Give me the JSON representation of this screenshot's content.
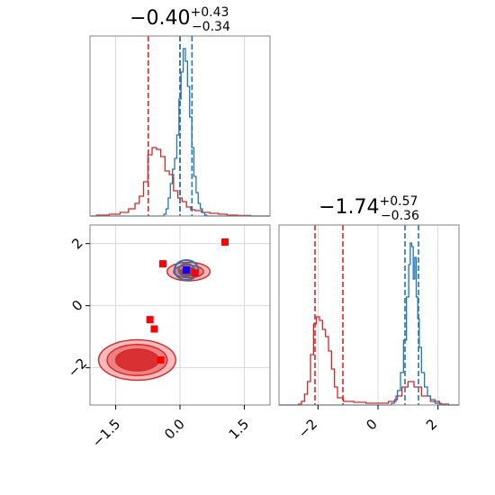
{
  "chart_data": {
    "type": "corner",
    "parameters": [
      "",
      ""
    ],
    "series": [
      {
        "name": "",
        "color": "#d62728"
      },
      {
        "name": "",
        "color": "#1f77b4"
      }
    ],
    "panels": [
      {
        "id": "p1-hist",
        "type": "histogram",
        "title": {
          "main": "−0.40",
          "sup": "+0.43",
          "sub": "−0.34"
        },
        "xlim": [
          -2.1,
          2.1
        ],
        "grid": true,
        "red_quantiles": [
          -0.74,
          0.0
        ],
        "blue_quantiles": [
          0.0,
          0.28
        ],
        "red_hist": {
          "x": [
            -1.8,
            -1.5,
            -1.3,
            -1.1,
            -1.0,
            -0.9,
            -0.8,
            -0.7,
            -0.6,
            -0.5,
            -0.4,
            -0.3,
            -0.2,
            -0.1,
            0.0,
            0.1,
            0.2,
            0.3,
            0.4,
            0.6,
            0.8,
            1.0,
            1.2,
            1.5
          ],
          "y": [
            0.005,
            0.01,
            0.02,
            0.04,
            0.07,
            0.11,
            0.19,
            0.34,
            0.38,
            0.37,
            0.33,
            0.25,
            0.23,
            0.14,
            0.1,
            0.08,
            0.05,
            0.035,
            0.03,
            0.02,
            0.015,
            0.01,
            0.005,
            0.003
          ]
        },
        "blue_hist": {
          "x": [
            -0.35,
            -0.3,
            -0.25,
            -0.2,
            -0.15,
            -0.1,
            -0.05,
            0.0,
            0.05,
            0.1,
            0.15,
            0.2,
            0.25,
            0.3,
            0.35,
            0.4,
            0.45,
            0.5,
            0.55,
            0.6
          ],
          "y": [
            0.01,
            0.04,
            0.1,
            0.18,
            0.26,
            0.32,
            0.45,
            0.65,
            0.8,
            0.93,
            0.86,
            0.72,
            0.55,
            0.38,
            0.22,
            0.13,
            0.07,
            0.04,
            0.02,
            0.005
          ]
        }
      },
      {
        "id": "p2-hist",
        "type": "histogram",
        "title": {
          "main": "−1.74",
          "sup": "+0.57",
          "sub": "−0.36"
        },
        "xlim": [
          -3.3,
          2.7
        ],
        "xticks": [
          -2,
          0,
          2
        ],
        "xtick_labels": [
          "−2",
          "0",
          "2"
        ],
        "grid": true,
        "red_quantiles": [
          -2.1,
          -1.17
        ],
        "blue_quantiles": [
          0.9,
          1.35
        ],
        "red_hist": {
          "x": [
            -2.6,
            -2.5,
            -2.4,
            -2.3,
            -2.2,
            -2.1,
            -2.0,
            -1.9,
            -1.8,
            -1.7,
            -1.6,
            -1.5,
            -1.4,
            -1.3,
            -1.0,
            -0.6,
            -0.2,
            0.2,
            0.5,
            0.7,
            0.9,
            1.1,
            1.3,
            1.6,
            1.9,
            2.2
          ],
          "y": [
            0.005,
            0.02,
            0.06,
            0.13,
            0.28,
            0.45,
            0.49,
            0.47,
            0.42,
            0.38,
            0.3,
            0.2,
            0.1,
            0.04,
            0.02,
            0.015,
            0.01,
            0.01,
            0.02,
            0.05,
            0.1,
            0.13,
            0.1,
            0.05,
            0.02,
            0.005
          ]
        },
        "blue_hist": {
          "x": [
            0.5,
            0.6,
            0.7,
            0.8,
            0.9,
            1.0,
            1.05,
            1.1,
            1.15,
            1.2,
            1.25,
            1.3,
            1.35,
            1.4,
            1.5,
            1.6,
            1.7,
            1.8,
            2.0
          ],
          "y": [
            0.01,
            0.03,
            0.08,
            0.18,
            0.36,
            0.6,
            0.78,
            0.9,
            0.88,
            0.7,
            0.82,
            0.6,
            0.48,
            0.32,
            0.18,
            0.1,
            0.05,
            0.03,
            0.01
          ]
        }
      },
      {
        "id": "p-joint",
        "type": "contour",
        "xlim": [
          -2.1,
          2.1
        ],
        "ylim": [
          -3.2,
          2.6
        ],
        "xticks": [
          -1.5,
          0.0,
          1.5
        ],
        "xtick_labels": [
          "−1.5",
          "0.0",
          "1.5"
        ],
        "yticks": [
          -2,
          0,
          2
        ],
        "ytick_labels": [
          "−2",
          "0",
          "2"
        ],
        "grid": true,
        "red_contours": [
          {
            "cx": -1.0,
            "cy": -1.75,
            "rx": [
              0.9,
              0.7,
              0.5
            ],
            "ry": [
              0.65,
              0.5,
              0.35
            ]
          },
          {
            "cx": 0.2,
            "cy": 1.1,
            "rx": [
              0.5,
              0.35,
              0.2
            ],
            "ry": [
              0.3,
              0.2,
              0.12
            ]
          }
        ],
        "blue_contours": [
          {
            "cx": 0.15,
            "cy": 1.15,
            "rx": [
              0.28,
              0.18
            ],
            "ry": [
              0.32,
              0.2
            ]
          }
        ],
        "red_markers": [
          {
            "x": -0.4,
            "y": 1.35
          },
          {
            "x": 1.05,
            "y": 2.05
          },
          {
            "x": 0.35,
            "y": 1.05
          },
          {
            "x": -0.7,
            "y": -0.45
          },
          {
            "x": -0.6,
            "y": -0.75
          },
          {
            "x": -0.45,
            "y": -1.75
          }
        ],
        "blue_markers": [
          {
            "x": 0.15,
            "y": 1.15
          }
        ]
      }
    ]
  }
}
